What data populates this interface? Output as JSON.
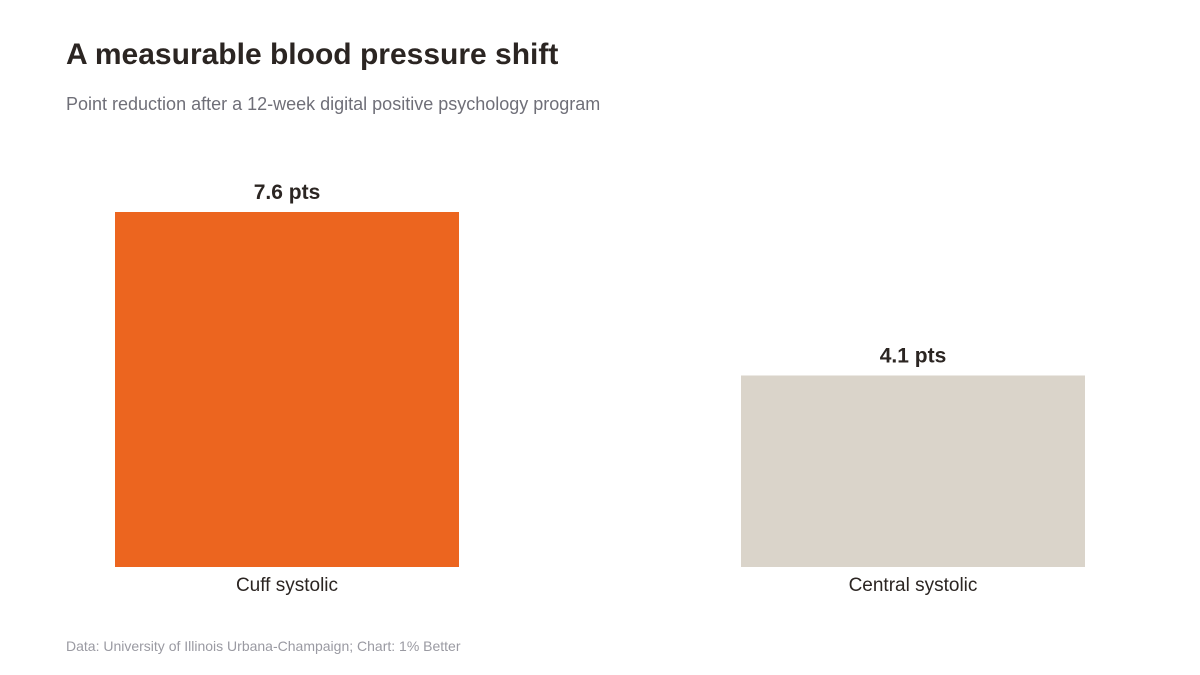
{
  "header": {
    "title": "A measurable blood pressure shift",
    "subtitle": "Point reduction after a 12-week digital positive psychology program"
  },
  "footer": {
    "source": "Data: University of Illinois Urbana-Champaign; Chart: 1% Better"
  },
  "colors": {
    "highlight": "#ec651f",
    "muted": "#dad4ca",
    "label_text": "#2b2522"
  },
  "chart_data": {
    "type": "bar",
    "categories": [
      "Cuff systolic",
      "Central systolic"
    ],
    "values": [
      7.6,
      4.1
    ],
    "value_labels": [
      "7.6 pts",
      "4.1 pts"
    ],
    "bar_colors": [
      "#ec651f",
      "#dad4ca"
    ],
    "ylim": [
      0,
      7.6
    ],
    "grid": false,
    "legend": "none"
  }
}
